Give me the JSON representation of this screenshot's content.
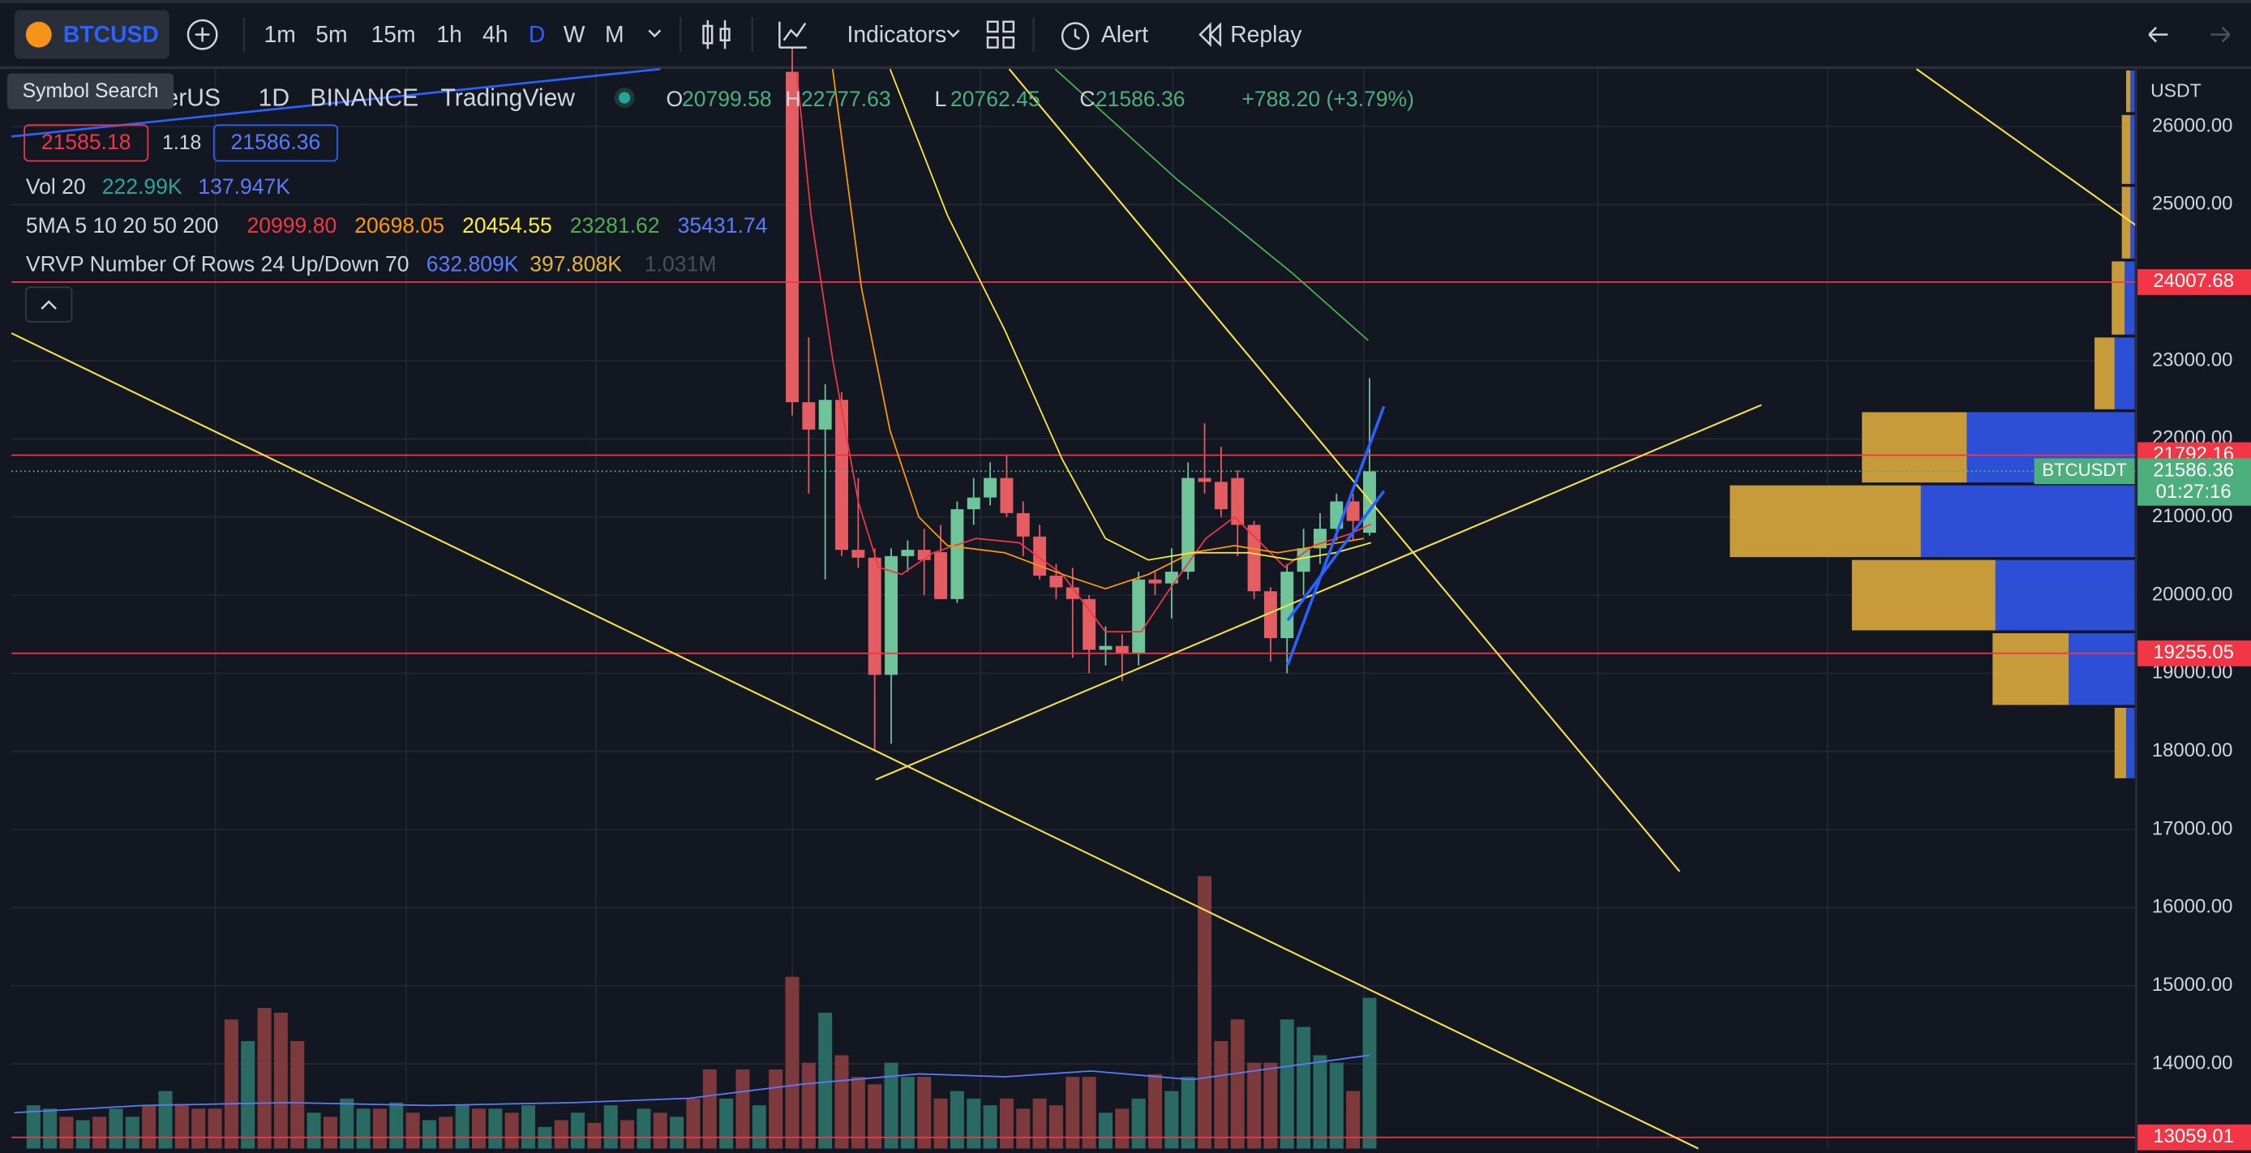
{
  "toolbar": {
    "symbol": "BTCUSD",
    "timeframes": [
      "1m",
      "5m",
      "15m",
      "1h",
      "4h",
      "D",
      "W",
      "M"
    ],
    "active_timeframe": "D",
    "indicators": "Indicators",
    "alert": "Alert",
    "replay": "Replay"
  },
  "tooltip": "Symbol Search",
  "legend": {
    "symbol_name": "Bitcoin / TetherUS",
    "interval": "1D",
    "exchange": "BINANCE",
    "source": "TradingView",
    "ohlc": [
      {
        "key": "O",
        "value": "20799.58"
      },
      {
        "key": "H",
        "value": "22777.63"
      },
      {
        "key": "L",
        "value": "20762.45"
      },
      {
        "key": "C",
        "value": "21586.36"
      }
    ],
    "change": "+788.20 (+3.79%)",
    "bid": "21585.18",
    "spread": "1.18",
    "ask": "21586.36",
    "volume": {
      "name": "Vol 20",
      "values": [
        {
          "text": "222.99K",
          "color": "#26a69a"
        },
        {
          "text": "137.947K",
          "color": "#5b7cfa"
        }
      ]
    },
    "ma": {
      "name": "5MA 5 10 20 50 200",
      "values": [
        {
          "text": "20999.80",
          "color": "#f23645"
        },
        {
          "text": "20698.05",
          "color": "#ff9800"
        },
        {
          "text": "20454.55",
          "color": "#ffeb3b"
        },
        {
          "text": "23281.62",
          "color": "#4caf50"
        },
        {
          "text": "35431.74",
          "color": "#5b7cfa"
        }
      ]
    },
    "vrvp": {
      "name": "VRVP Number Of Rows 24 Up/Down 70",
      "values": [
        {
          "text": "632.809K",
          "color": "#5b7cfa"
        },
        {
          "text": "397.808K",
          "color": "#e0b341"
        },
        {
          "text": "1.031M",
          "color": "#4a4e59"
        }
      ]
    }
  },
  "chart": {
    "type": "candlestick",
    "currency": "USDT",
    "ylim": [
      12915.8,
      26735.1
    ],
    "yticks": [
      {
        "value": 26000,
        "label": "26000.00"
      },
      {
        "value": 25000,
        "label": "25000.00"
      },
      {
        "value": 23000,
        "label": "23000.00"
      },
      {
        "value": 22000,
        "label": "22000.00"
      },
      {
        "value": 21000,
        "label": "21000.00"
      },
      {
        "value": 20000,
        "label": "20000.00"
      },
      {
        "value": 19000,
        "label": "19000.00"
      },
      {
        "value": 18000,
        "label": "18000.00"
      },
      {
        "value": 17000,
        "label": "17000.00"
      },
      {
        "value": 16000,
        "label": "16000.00"
      },
      {
        "value": 15000,
        "label": "15000.00"
      },
      {
        "value": 14000,
        "label": "14000.00"
      }
    ],
    "up_color": "#6fc49a",
    "down_color": "#e35d62",
    "candles": {
      "open": [
        26700,
        22470,
        22120,
        22500,
        20580,
        20480,
        18980,
        20500,
        20580,
        20550,
        19950,
        21100,
        21250,
        21500,
        21050,
        20750,
        20250,
        20100,
        19950,
        19300,
        19350,
        19250,
        20200,
        20150,
        20300,
        21500,
        21450,
        21500,
        20900,
        20050,
        19450,
        20300,
        20600,
        20850,
        21200,
        20799.58
      ],
      "high": [
        27000,
        23300,
        22700,
        22600,
        21500,
        20600,
        20600,
        20700,
        20850,
        20900,
        21200,
        21500,
        21700,
        21800,
        21200,
        20900,
        20400,
        20350,
        20000,
        19600,
        19500,
        20300,
        20300,
        20600,
        21700,
        22200,
        21900,
        21600,
        20950,
        20100,
        20400,
        20850,
        21050,
        21300,
        21300,
        22777.63
      ],
      "low": [
        22300,
        21300,
        20200,
        20500,
        20350,
        18000,
        18100,
        20300,
        20000,
        19950,
        19900,
        20900,
        21150,
        21000,
        20500,
        20200,
        19950,
        19200,
        19000,
        19100,
        18900,
        19100,
        20000,
        19700,
        20200,
        21300,
        21000,
        20500,
        19950,
        19150,
        19000,
        20000,
        20400,
        20700,
        20700,
        20762.45
      ],
      "close": [
        22470,
        22120,
        22500,
        20580,
        20480,
        18980,
        20500,
        20580,
        20450,
        19950,
        21100,
        21250,
        21500,
        21050,
        20750,
        20250,
        20100,
        19950,
        19300,
        19350,
        19250,
        20200,
        20150,
        20300,
        21500,
        21450,
        21100,
        20900,
        20050,
        19450,
        20300,
        20600,
        20850,
        21200,
        20950,
        21586.36
      ]
    },
    "volume": {
      "ylim": [
        0,
        1597
      ],
      "up_color": "#2b6a63",
      "down_color": "#7c3a3d",
      "values": [
        64,
        59,
        47,
        42,
        47,
        59,
        47,
        64,
        85,
        64,
        59,
        59,
        191,
        159,
        208,
        201,
        159,
        53,
        47,
        74,
        59,
        59,
        68,
        53,
        42,
        47,
        64,
        59,
        59,
        53,
        64,
        32,
        42,
        53,
        38,
        64,
        42,
        59,
        53,
        47,
        74,
        117,
        74,
        117,
        64,
        117,
        254,
        127,
        201,
        138,
        106,
        95,
        127,
        106,
        106,
        74,
        85,
        74,
        64,
        74,
        59,
        74,
        64,
        106,
        106,
        53,
        59,
        74,
        110,
        85,
        106,
        403,
        159,
        191,
        127,
        127,
        191,
        180,
        138,
        127,
        85,
        222.99
      ],
      "up": [
        true,
        true,
        false,
        true,
        false,
        true,
        true,
        false,
        true,
        false,
        false,
        false,
        false,
        true,
        false,
        false,
        false,
        true,
        false,
        true,
        true,
        false,
        true,
        false,
        true,
        false,
        true,
        false,
        true,
        false,
        true,
        true,
        false,
        true,
        false,
        true,
        false,
        true,
        false,
        true,
        false,
        false,
        true,
        false,
        true,
        false,
        false,
        false,
        true,
        false,
        false,
        false,
        true,
        true,
        false,
        false,
        true,
        true,
        true,
        false,
        false,
        false,
        false,
        false,
        false,
        true,
        false,
        true,
        false,
        true,
        true,
        false,
        false,
        false,
        false,
        false,
        true,
        true,
        true,
        true,
        false,
        true
      ]
    },
    "price_lines": [
      {
        "value": 24007.68,
        "color": "#f23645"
      },
      {
        "value": 21792.16,
        "color": "#f23645"
      },
      {
        "value": 19255.05,
        "color": "#f23645"
      },
      {
        "value": 13059.01,
        "color": "#f23645"
      }
    ],
    "last_price": {
      "value": 21586.36,
      "symbol": "BTCUSDT",
      "countdown": "01:27:16",
      "color": "#4caf7d"
    },
    "vrvp": {
      "up_color": "#2d4fd6",
      "down_color": "#c79a3a",
      "rows": [
        {
          "high": 26735,
          "low": 26165,
          "up": 6,
          "down": 6
        },
        {
          "high": 26165,
          "low": 25246,
          "up": 6,
          "down": 12
        },
        {
          "high": 25246,
          "low": 24291,
          "up": 6,
          "down": 12
        },
        {
          "high": 24291,
          "low": 23317,
          "up": 14,
          "down": 18
        },
        {
          "high": 23317,
          "low": 22361,
          "up": 28,
          "down": 28
        },
        {
          "high": 22361,
          "low": 21424,
          "up": 234,
          "down": 146
        },
        {
          "high": 21424,
          "low": 20469,
          "up": 298,
          "down": 266
        },
        {
          "high": 20469,
          "low": 19531,
          "up": 194,
          "down": 200
        },
        {
          "high": 19531,
          "low": 18576,
          "up": 92,
          "down": 106
        },
        {
          "high": 18576,
          "low": 17638,
          "up": 12,
          "down": 16
        }
      ]
    }
  }
}
